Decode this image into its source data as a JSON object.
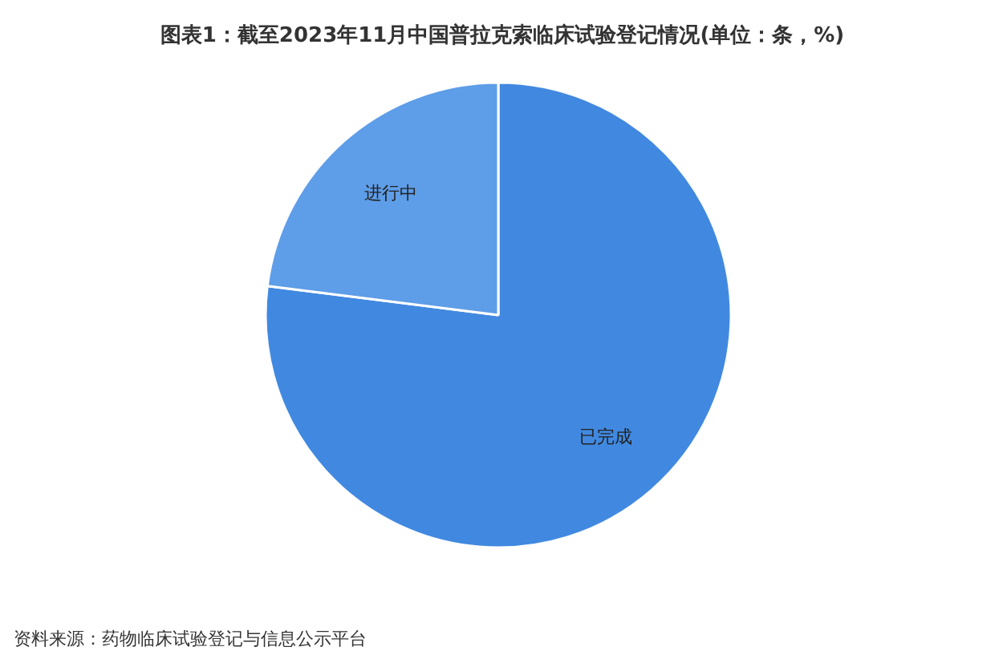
{
  "chart_data": {
    "type": "pie",
    "title": "图表1：截至2023年11月中国普拉克索临床试验登记情况(单位：条，%)",
    "categories": [
      "已完成",
      "进行中"
    ],
    "values": [
      77,
      23
    ],
    "colors": [
      "#4189e0",
      "#5e9de8"
    ],
    "annotations": [
      "资料来源：药物临床试验登记与信息公示平台"
    ]
  }
}
